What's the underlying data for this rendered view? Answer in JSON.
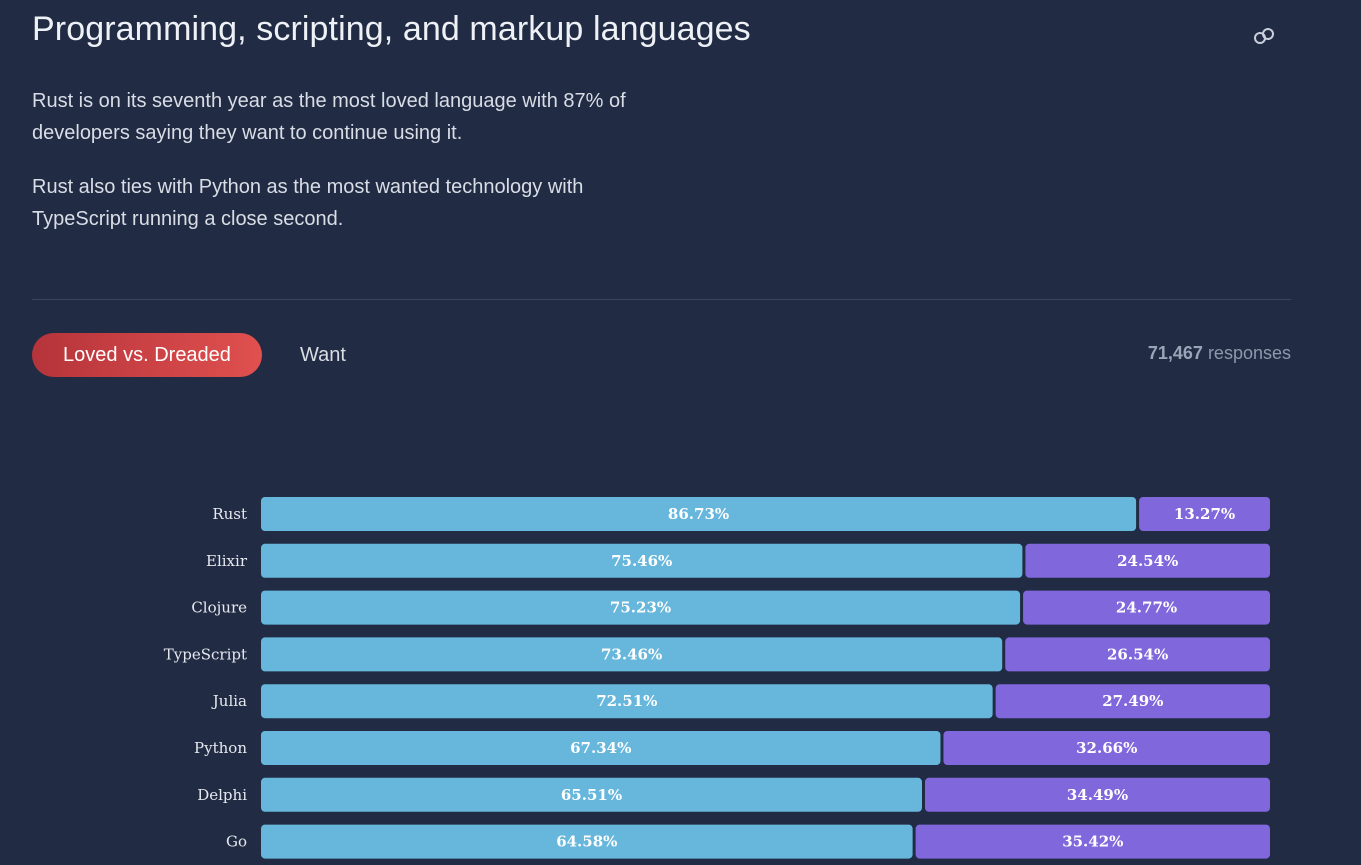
{
  "header": {
    "title": "Programming, scripting, and markup languages",
    "link_icon": "link-icon"
  },
  "intro": {
    "p1": "Rust is on its seventh year as the most loved language with 87% of developers saying they want to continue using it.",
    "p2": "Rust also ties with Python as the most wanted technology with TypeScript running a close second."
  },
  "tabs": {
    "active": "Loved vs. Dreaded",
    "inactive": "Want"
  },
  "responses": {
    "count": "71,467",
    "label": "responses"
  },
  "colors": {
    "background": "#212b43",
    "loved": "#67b7dc",
    "dreaded": "#8067dc",
    "tab_active": "#d9474a"
  },
  "chart_data": {
    "type": "bar",
    "orientation": "horizontal",
    "stacked": true,
    "percent": true,
    "categories": [
      "Rust",
      "Elixir",
      "Clojure",
      "TypeScript",
      "Julia",
      "Python",
      "Delphi",
      "Go"
    ],
    "series": [
      {
        "values": [
          86.73,
          75.46,
          75.23,
          73.46,
          72.51,
          67.34,
          65.51,
          64.58
        ],
        "labels": [
          "86.73%",
          "75.46%",
          "75.23%",
          "73.46%",
          "72.51%",
          "67.34%",
          "65.51%",
          "64.58%"
        ],
        "color": "#67b7dc"
      },
      {
        "values": [
          13.27,
          24.54,
          24.77,
          26.54,
          27.49,
          32.66,
          34.49,
          35.42
        ],
        "labels": [
          "13.27%",
          "24.54%",
          "24.77%",
          "26.54%",
          "27.49%",
          "32.66%",
          "34.49%",
          "35.42%"
        ],
        "color": "#8067dc"
      }
    ],
    "xlim": [
      0,
      100
    ],
    "grid": false
  }
}
